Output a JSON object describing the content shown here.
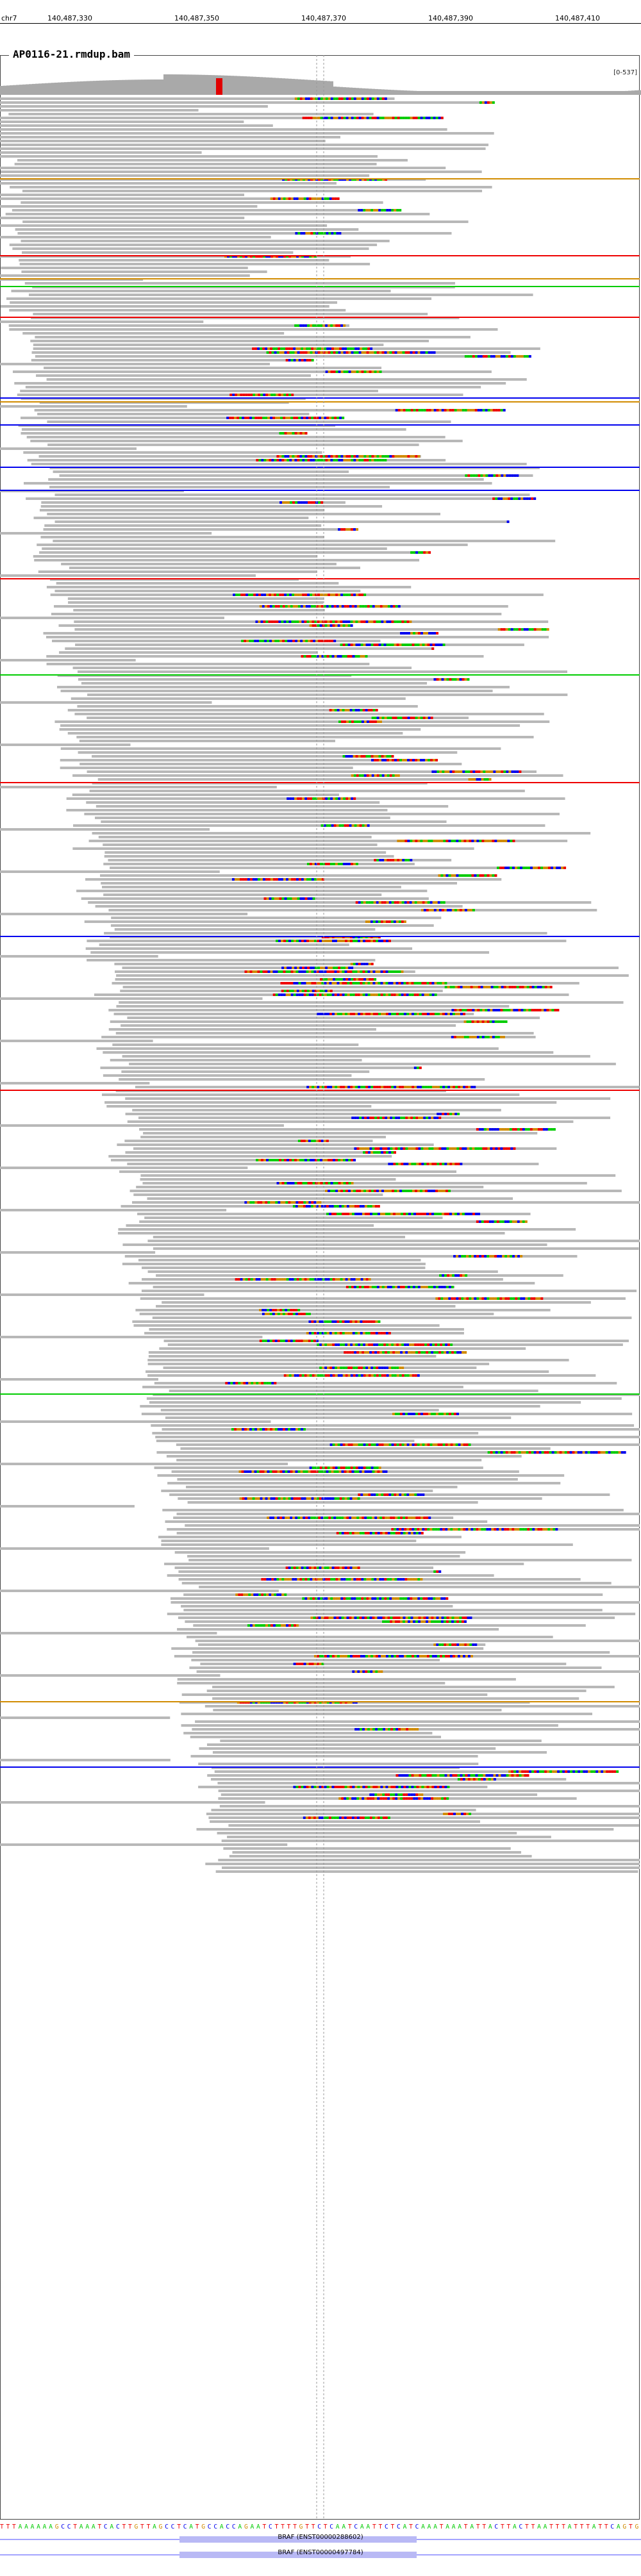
{
  "ruler": {
    "chromosome": "chr7",
    "ticks": [
      "140,487,330",
      "140,487,350",
      "140,487,370",
      "140,487,390",
      "140,487,410"
    ]
  },
  "track": {
    "title": "AP0116-21.rmdup.bam",
    "range": "[0-537]"
  },
  "sequence": "TTTAAAAAAGCCTAAATCACTTGTTAGCCTCATGCCACCAGAATCTTTTGTTCTCAATCAATTCTCATCAAATAAATATTACTTACTTAATTTATTTATTCAGTG",
  "genes": [
    {
      "label": "BRAF (ENST00000288602)"
    },
    {
      "label": "BRAF (ENST00000497784)"
    }
  ],
  "colors": {
    "read": "#b8b8b8",
    "coverage": "#a9a9a9",
    "snv_highlight": "#e00000",
    "A": "#00cc00",
    "C": "#0000ee",
    "G": "#d18b00",
    "T": "#ee0000",
    "gene_feature": "#b9b9f5"
  }
}
